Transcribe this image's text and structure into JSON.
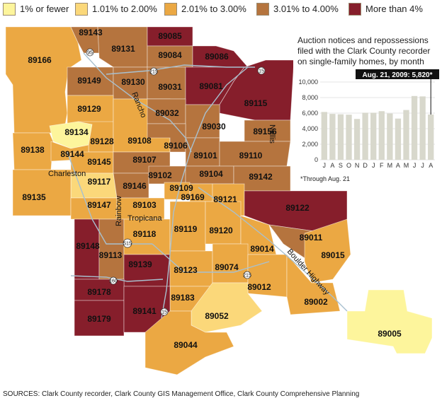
{
  "legend": [
    {
      "label": "1% or fewer",
      "color": "#fdf59c"
    },
    {
      "label": "1.01% to 2.00%",
      "color": "#fbd87a"
    },
    {
      "label": "2.01% to 3.00%",
      "color": "#eba843"
    },
    {
      "label": "3.01% to 4.00%",
      "color": "#b5743e"
    },
    {
      "label": "More than 4%",
      "color": "#861e2b"
    }
  ],
  "zip_codes": [
    "89143",
    "89085",
    "89166",
    "89131",
    "89084",
    "89086",
    "89149",
    "89130",
    "89031",
    "89081",
    "89115",
    "89129",
    "89032",
    "89030",
    "89134",
    "89128",
    "89108",
    "89106",
    "89156",
    "89138",
    "89144",
    "89107",
    "89101",
    "89110",
    "89145",
    "89102",
    "89104",
    "89142",
    "89117",
    "89146",
    "89109",
    "89169",
    "89135",
    "89147",
    "89103",
    "89121",
    "89122",
    "89119",
    "89120",
    "89148",
    "89118",
    "89011",
    "89113",
    "89014",
    "89015",
    "89139",
    "89123",
    "89074",
    "89012",
    "89178",
    "89183",
    "89002",
    "89179",
    "89141",
    "89052",
    "89005",
    "89044"
  ],
  "road_labels": {
    "rancho": "Rancho",
    "charleston": "Charleston",
    "rainbow": "Rainbow",
    "tropicana": "Tropicana",
    "nellis": "Nellis",
    "boulder_highway": "Boulder Highway"
  },
  "highway_shields": [
    "95",
    "215",
    "15",
    "515",
    "215",
    "160",
    "15"
  ],
  "chart": {
    "title": "Auction notices and repossessions filed with the Clark County recorder on single-family homes, by month",
    "callout": "Aug. 21, 2009: 5,820*",
    "footnote": "*Through Aug. 21"
  },
  "chart_data": {
    "type": "bar",
    "categories": [
      "J",
      "A",
      "S",
      "O",
      "N",
      "D",
      "J",
      "F",
      "M",
      "A",
      "M",
      "J",
      "J",
      "A"
    ],
    "values": [
      6150,
      5900,
      5850,
      5800,
      5250,
      6050,
      6050,
      6250,
      5950,
      5300,
      6400,
      8200,
      8150,
      5820
    ],
    "yticks": [
      0,
      2000,
      4000,
      6000,
      8000,
      10000
    ],
    "ytick_labels": [
      "0",
      "2,000",
      "4,000",
      "6,000",
      "8,000",
      "10,000"
    ],
    "ylim": [
      0,
      10000
    ],
    "grid": true,
    "bar_color": "#d8d8cc",
    "highlight_color": "#111111"
  },
  "sources": "SOURCES: Clark County recorder, Clark County GIS Management Office, Clark County Comprehensive Planning"
}
